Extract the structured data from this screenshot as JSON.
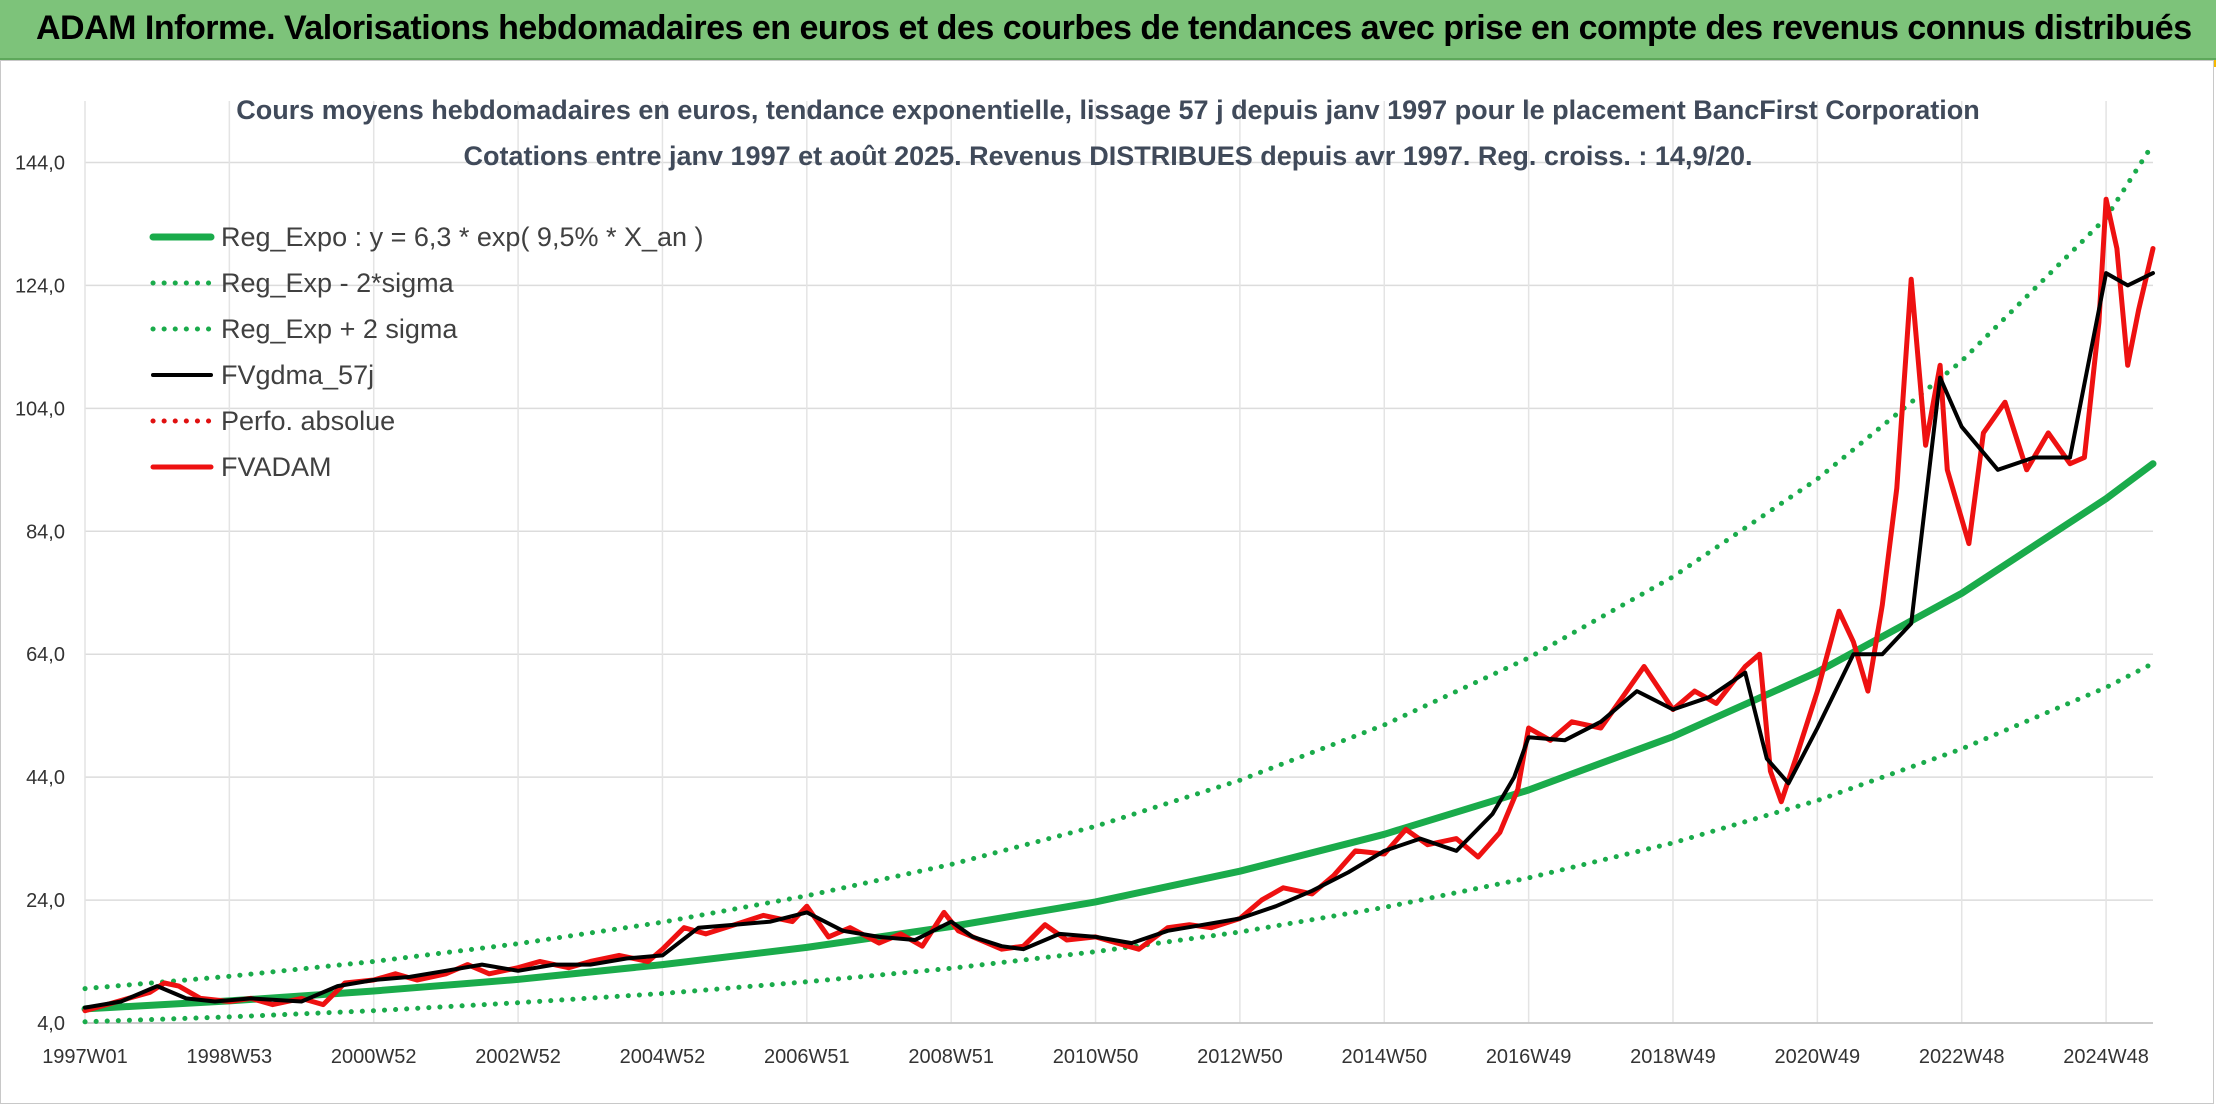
{
  "banner": {
    "title": "ADAM Informe. Valorisations hebdomadaires en euros et des courbes de tendances avec prise en compte des revenus connus distribués"
  },
  "chart_data": {
    "type": "line",
    "title_lines": [
      "Cours moyens hebdomadaires en euros, tendance exponentielle, lissage 57 j depuis janv 1997 pour le placement BancFirst Corporation",
      "Cotations entre janv 1997 et août 2025. Revenus DISTRIBUES depuis avr 1997. Reg. croiss. : 14,9/20."
    ],
    "xlabel": "",
    "ylabel": "",
    "x_range": [
      1997.0,
      2025.65
    ],
    "ylim": [
      4,
      154
    ],
    "y_ticks": [
      "4,0",
      "24,0",
      "44,0",
      "64,0",
      "84,0",
      "104,0",
      "124,0",
      "144,0"
    ],
    "x_ticks": [
      {
        "label": "1997W01",
        "x": 1997.0
      },
      {
        "label": "1998W53",
        "x": 1999.0
      },
      {
        "label": "2000W52",
        "x": 2001.0
      },
      {
        "label": "2002W52",
        "x": 2003.0
      },
      {
        "label": "2004W52",
        "x": 2005.0
      },
      {
        "label": "2006W51",
        "x": 2007.0
      },
      {
        "label": "2008W51",
        "x": 2009.0
      },
      {
        "label": "2010W50",
        "x": 2011.0
      },
      {
        "label": "2012W50",
        "x": 2013.0
      },
      {
        "label": "2014W50",
        "x": 2015.0
      },
      {
        "label": "2016W49",
        "x": 2017.0
      },
      {
        "label": "2018W49",
        "x": 2019.0
      },
      {
        "label": "2020W49",
        "x": 2021.0
      },
      {
        "label": "2022W48",
        "x": 2023.0
      },
      {
        "label": "2024W48",
        "x": 2025.0
      }
    ],
    "grid": true,
    "legend_position": "top-left",
    "series": [
      {
        "name": "Reg_Expo : y = 6,3 * exp( 9,5% *  X_an )",
        "color": "#1aab4b",
        "style": "solid",
        "x": [
          1997,
          1999,
          2001,
          2003,
          2005,
          2007,
          2009,
          2011,
          2013,
          2015,
          2017,
          2019,
          2021,
          2023,
          2025,
          2025.65
        ],
        "y": [
          6.3,
          7.6,
          9.2,
          11.1,
          13.5,
          16.3,
          19.7,
          23.7,
          28.7,
          34.7,
          41.9,
          50.6,
          61.1,
          73.9,
          89.3,
          95.0
        ]
      },
      {
        "name": "Reg_Exp - 2*sigma",
        "color": "#1aab4b",
        "style": "dotted",
        "x": [
          1997,
          1999,
          2001,
          2003,
          2005,
          2007,
          2009,
          2011,
          2013,
          2015,
          2017,
          2019,
          2021,
          2023,
          2025,
          2025.65
        ],
        "y": [
          4.2,
          5.0,
          6.0,
          7.3,
          8.8,
          10.7,
          12.9,
          15.6,
          18.8,
          22.8,
          27.6,
          33.3,
          40.2,
          48.6,
          58.6,
          62.5
        ]
      },
      {
        "name": "Reg_Exp + 2 sigma",
        "color": "#1aab4b",
        "style": "dotted",
        "x": [
          1997,
          1999,
          2001,
          2003,
          2005,
          2007,
          2009,
          2011,
          2013,
          2015,
          2017,
          2019,
          2021,
          2023,
          2025,
          2025.65
        ],
        "y": [
          9.6,
          11.6,
          14.0,
          16.9,
          20.4,
          24.7,
          29.8,
          36.0,
          43.5,
          52.5,
          63.4,
          76.6,
          92.5,
          111.7,
          135.0,
          147.0
        ]
      },
      {
        "name": "FVgdma_57j",
        "color": "#000000",
        "style": "solid",
        "x": [
          1997.0,
          1997.5,
          1998.0,
          1998.4,
          1998.8,
          1999.3,
          2000.0,
          2000.5,
          2001.0,
          2001.5,
          2002.0,
          2002.5,
          2003.0,
          2003.5,
          2004.0,
          2004.5,
          2005.0,
          2005.5,
          2006.0,
          2006.5,
          2007.0,
          2007.5,
          2008.0,
          2008.5,
          2009.0,
          2009.3,
          2009.7,
          2010.0,
          2010.5,
          2011.0,
          2011.5,
          2012.0,
          2012.5,
          2013.0,
          2013.5,
          2014.0,
          2014.5,
          2015.0,
          2015.5,
          2016.0,
          2016.5,
          2016.8,
          2017.0,
          2017.5,
          2018.0,
          2018.5,
          2019.0,
          2019.5,
          2020.0,
          2020.3,
          2020.6,
          2021.0,
          2021.5,
          2021.9,
          2022.3,
          2022.7,
          2023.0,
          2023.5,
          2024.0,
          2024.5,
          2025.0,
          2025.3,
          2025.65
        ],
        "y": [
          6.5,
          7.5,
          10.0,
          8.0,
          7.5,
          8.0,
          7.5,
          10.0,
          11.0,
          11.5,
          12.5,
          13.5,
          12.5,
          13.5,
          13.5,
          14.5,
          15.0,
          19.5,
          20.0,
          20.5,
          22.0,
          19.0,
          18.0,
          17.5,
          20.5,
          18.0,
          16.5,
          16.0,
          18.5,
          18.0,
          17.0,
          19.0,
          20.0,
          21.0,
          23.0,
          25.5,
          28.5,
          32.0,
          34.0,
          32.0,
          38.0,
          44.0,
          50.5,
          50.0,
          53.0,
          58.0,
          55.0,
          57.0,
          61.0,
          47.0,
          43.0,
          52.0,
          64.0,
          64.0,
          69.0,
          109.0,
          101.0,
          94.0,
          96.0,
          96.0,
          126.0,
          124.0,
          126.0
        ]
      },
      {
        "name": "Perfo. absolue",
        "color": "#e01010",
        "style": "dotted",
        "x": [],
        "y": []
      },
      {
        "name": "FVADAM",
        "color": "#ee1111",
        "style": "solid",
        "x": [
          1997.0,
          1997.3,
          1997.6,
          1997.9,
          1998.1,
          1998.3,
          1998.6,
          1999.0,
          1999.3,
          1999.6,
          2000.0,
          2000.3,
          2000.6,
          2001.0,
          2001.3,
          2001.6,
          2002.0,
          2002.3,
          2002.6,
          2003.0,
          2003.3,
          2003.7,
          2004.0,
          2004.4,
          2004.8,
          2005.0,
          2005.3,
          2005.6,
          2006.0,
          2006.4,
          2006.8,
          2007.0,
          2007.3,
          2007.6,
          2008.0,
          2008.3,
          2008.6,
          2008.9,
          2009.1,
          2009.4,
          2009.7,
          2010.0,
          2010.3,
          2010.6,
          2011.0,
          2011.3,
          2011.6,
          2012.0,
          2012.3,
          2012.6,
          2013.0,
          2013.3,
          2013.6,
          2014.0,
          2014.3,
          2014.6,
          2015.0,
          2015.3,
          2015.6,
          2016.0,
          2016.3,
          2016.6,
          2016.85,
          2017.0,
          2017.3,
          2017.6,
          2018.0,
          2018.3,
          2018.6,
          2019.0,
          2019.3,
          2019.6,
          2020.0,
          2020.2,
          2020.35,
          2020.5,
          2020.7,
          2021.0,
          2021.3,
          2021.5,
          2021.7,
          2021.9,
          2022.1,
          2022.3,
          2022.5,
          2022.7,
          2022.8,
          2022.9,
          2023.1,
          2023.3,
          2023.6,
          2023.9,
          2024.2,
          2024.5,
          2024.7,
          2024.9,
          2025.0,
          2025.15,
          2025.3,
          2025.45,
          2025.65
        ],
        "y": [
          6.0,
          7.0,
          8.0,
          9.0,
          10.5,
          10.0,
          8.0,
          7.5,
          8.0,
          7.0,
          8.0,
          7.0,
          10.5,
          11.0,
          12.0,
          11.0,
          12.0,
          13.5,
          12.0,
          13.0,
          14.0,
          13.0,
          14.0,
          15.0,
          14.0,
          16.0,
          19.5,
          18.5,
          20.0,
          21.5,
          20.5,
          23.0,
          18.0,
          19.5,
          17.0,
          18.5,
          16.5,
          22.0,
          19.0,
          17.5,
          16.0,
          16.5,
          20.0,
          17.5,
          18.0,
          17.0,
          16.0,
          19.5,
          20.0,
          19.5,
          21.0,
          24.0,
          26.0,
          25.0,
          28.0,
          32.0,
          31.5,
          35.5,
          33.0,
          34.0,
          31.0,
          35.0,
          42.0,
          52.0,
          50.0,
          53.0,
          52.0,
          57.0,
          62.0,
          55.0,
          58.0,
          56.0,
          62.0,
          64.0,
          45.0,
          40.0,
          47.0,
          58.0,
          71.0,
          66.0,
          58.0,
          72.0,
          91.0,
          125.0,
          98.0,
          111.0,
          94.0,
          90.0,
          82.0,
          100.0,
          105.0,
          94.0,
          100.0,
          95.0,
          96.0,
          118.0,
          138.0,
          130.0,
          111.0,
          120.0,
          130.0
        ]
      }
    ]
  }
}
